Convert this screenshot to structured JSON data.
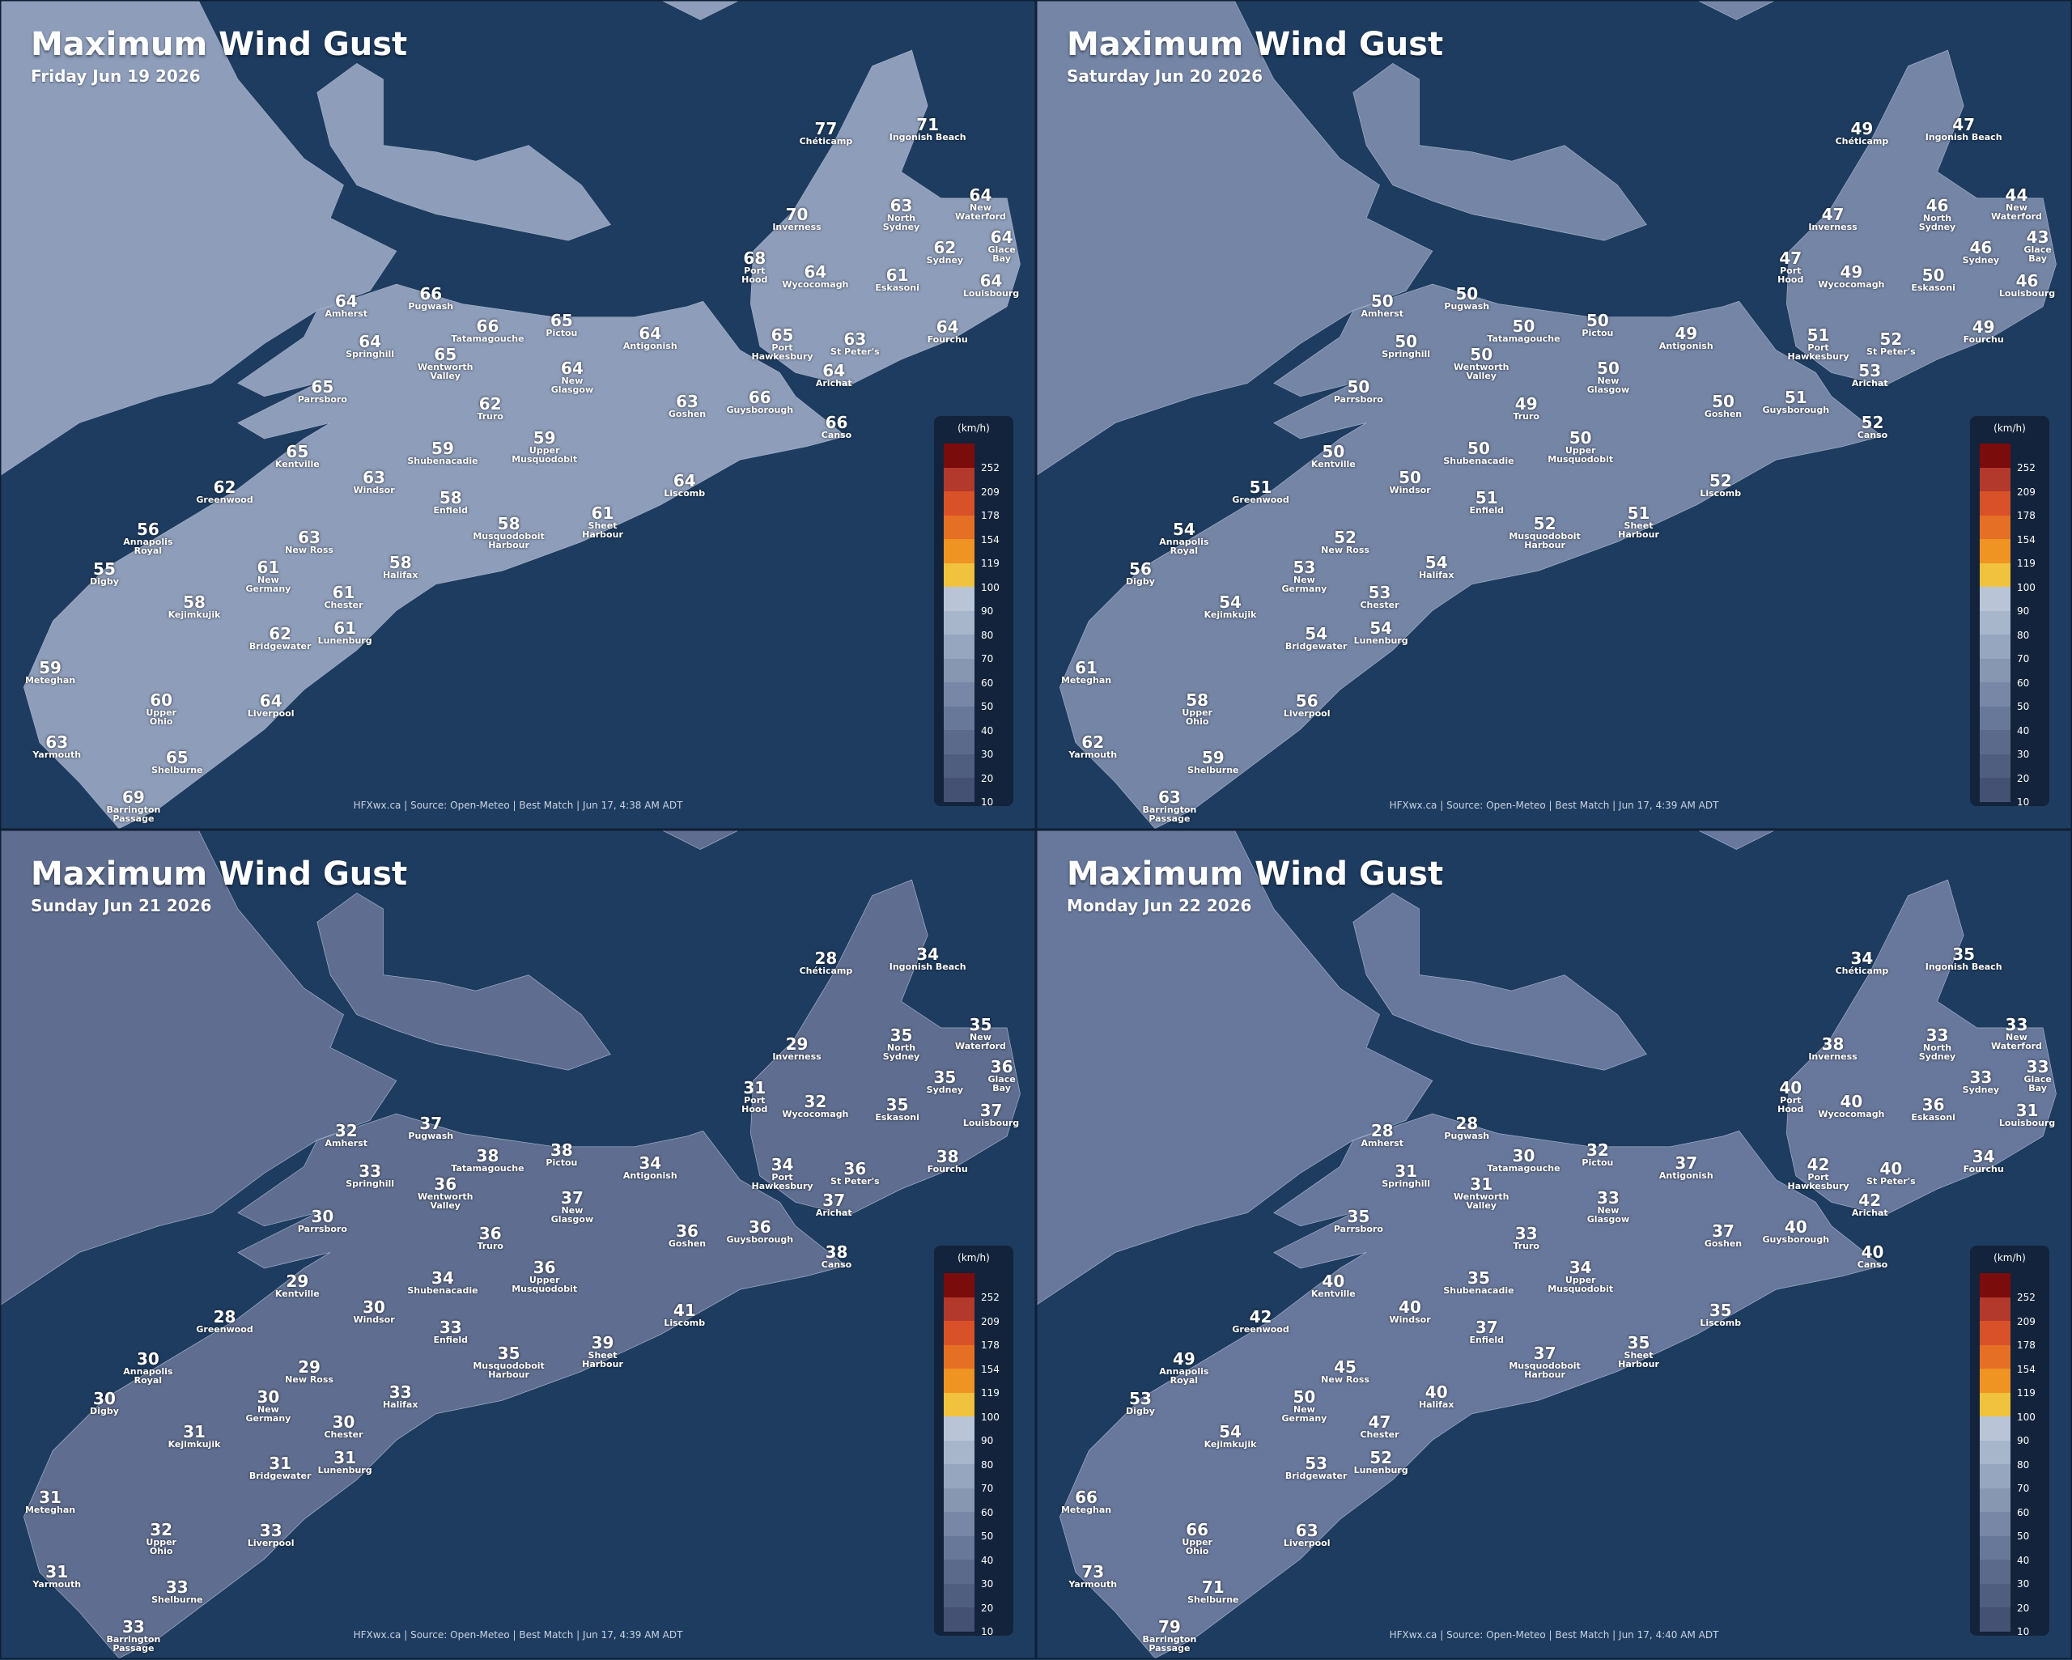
{
  "panels": [
    {
      "title": "Maximum Wind Gust",
      "subtitle": "Friday Jun 19 2026",
      "footer": "HFXwx.ca | Source: Open-Meteo | Best Match | Jun 17, 4:38 AM ADT",
      "values": [
        77,
        71,
        70,
        63,
        64,
        62,
        64,
        68,
        64,
        61,
        64,
        64,
        66,
        66,
        65,
        64,
        65,
        63,
        64,
        64,
        65,
        64,
        64,
        65,
        62,
        63,
        66,
        66,
        65,
        59,
        59,
        62,
        63,
        58,
        64,
        56,
        63,
        61,
        58,
        55,
        58,
        61,
        58,
        61,
        61,
        62,
        59,
        60,
        64,
        63,
        65,
        69
      ]
    },
    {
      "title": "Maximum Wind Gust",
      "subtitle": "Saturday Jun 20 2026",
      "footer": "HFXwx.ca | Source: Open-Meteo | Best Match | Jun 17, 4:39 AM ADT",
      "values": [
        49,
        47,
        47,
        46,
        44,
        46,
        43,
        47,
        49,
        50,
        46,
        50,
        50,
        50,
        50,
        49,
        51,
        52,
        49,
        50,
        50,
        50,
        53,
        50,
        49,
        50,
        51,
        52,
        50,
        50,
        50,
        51,
        50,
        51,
        52,
        54,
        52,
        51,
        52,
        56,
        54,
        53,
        54,
        53,
        54,
        54,
        61,
        58,
        56,
        62,
        59,
        63
      ]
    },
    {
      "title": "Maximum Wind Gust",
      "subtitle": "Sunday Jun 21 2026",
      "footer": "HFXwx.ca | Source: Open-Meteo | Best Match | Jun 17, 4:39 AM ADT",
      "values": [
        28,
        34,
        29,
        35,
        35,
        35,
        36,
        31,
        32,
        35,
        37,
        32,
        37,
        38,
        38,
        34,
        34,
        36,
        38,
        33,
        36,
        37,
        37,
        30,
        36,
        36,
        36,
        38,
        29,
        34,
        36,
        28,
        30,
        33,
        41,
        30,
        29,
        39,
        35,
        30,
        33,
        30,
        31,
        30,
        31,
        31,
        31,
        32,
        33,
        31,
        33,
        33
      ]
    },
    {
      "title": "Maximum Wind Gust",
      "subtitle": "Monday Jun 22 2026",
      "footer": "HFXwx.ca | Source: Open-Meteo | Best Match | Jun 17, 4:40 AM ADT",
      "values": [
        34,
        35,
        38,
        33,
        33,
        33,
        33,
        40,
        40,
        36,
        31,
        28,
        28,
        30,
        32,
        37,
        42,
        40,
        34,
        31,
        31,
        33,
        42,
        35,
        33,
        37,
        40,
        40,
        40,
        35,
        34,
        42,
        40,
        37,
        35,
        49,
        45,
        35,
        37,
        53,
        40,
        50,
        54,
        47,
        52,
        53,
        66,
        66,
        63,
        73,
        71,
        79
      ]
    }
  ],
  "cities": [
    "Chéticamp",
    "Ingonish Beach",
    "Inverness",
    "North\nSydney",
    "New\nWaterford",
    "Sydney",
    "Glace\nBay",
    "Port\nHood",
    "Wycocomagh",
    "Eskasoni",
    "Louisbourg",
    "Amherst",
    "Pugwash",
    "Tatamagouche",
    "Pictou",
    "Antigonish",
    "Port\nHawkesbury",
    "St Peter's",
    "Fourchu",
    "Springhill",
    "Wentworth\nValley",
    "New\nGlasgow",
    "Arichat",
    "Parrsboro",
    "Truro",
    "Goshen",
    "Guysborough",
    "Canso",
    "Kentville",
    "Shubenacadie",
    "Upper\nMusquodobit",
    "Greenwood",
    "Windsor",
    "Enfield",
    "Liscomb",
    "Annapolis\nRoyal",
    "New Ross",
    "Sheet\nHarbour",
    "Musquodoboit\nHarbour",
    "Digby",
    "Halifax",
    "New\nGermany",
    "Kejimkujik",
    "Chester",
    "Lunenburg",
    "Bridgewater",
    "Meteghan",
    "Upper\nOhio",
    "Liverpool",
    "Yarmouth",
    "Shelburne",
    "Barrington\nPassage"
  ],
  "legend": {
    "unit": "(km/h)",
    "values": [
      252,
      209,
      178,
      154,
      119,
      100,
      90,
      80,
      70,
      60,
      50,
      40,
      30,
      20,
      10
    ],
    "colors": [
      "#7a0c0c",
      "#b3392c",
      "#d95128",
      "#e66f26",
      "#ef9322",
      "#f0c23e",
      "#b9c5d7",
      "#a8b6cb",
      "#97a6bf",
      "#8797b2",
      "#7787a5",
      "#687898",
      "#5b6a8b",
      "#4f5d7e",
      "#445172"
    ]
  }
}
